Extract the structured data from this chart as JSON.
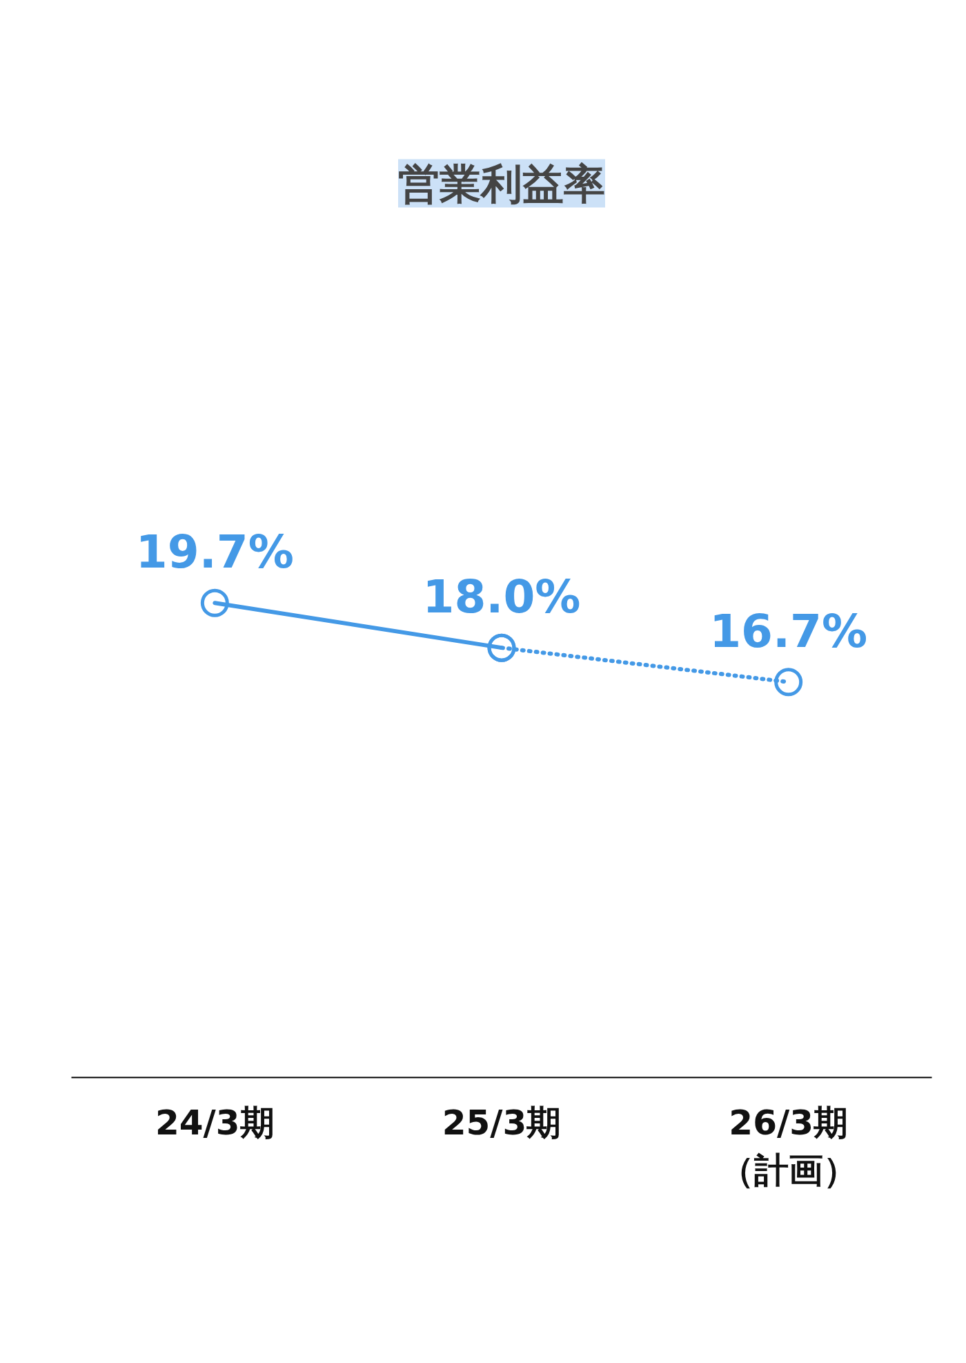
{
  "chart_data": {
    "type": "line",
    "title": "営業利益率",
    "categories": [
      "24/3期",
      "25/3期",
      "26/3期（計画）"
    ],
    "tick_labels": "x",
    "grid": false,
    "marker": "circle",
    "series": [
      {
        "color": "#4499e6",
        "values": [
          19.7,
          18.0,
          null
        ],
        "line_style": "solid",
        "value_labels": [
          "19.7%",
          "18.0%",
          null
        ]
      },
      {
        "color": "#4499e6",
        "values": [
          null,
          18.0,
          16.7
        ],
        "line_style": "dotted",
        "value_labels": [
          null,
          null,
          "16.7%"
        ]
      }
    ]
  }
}
